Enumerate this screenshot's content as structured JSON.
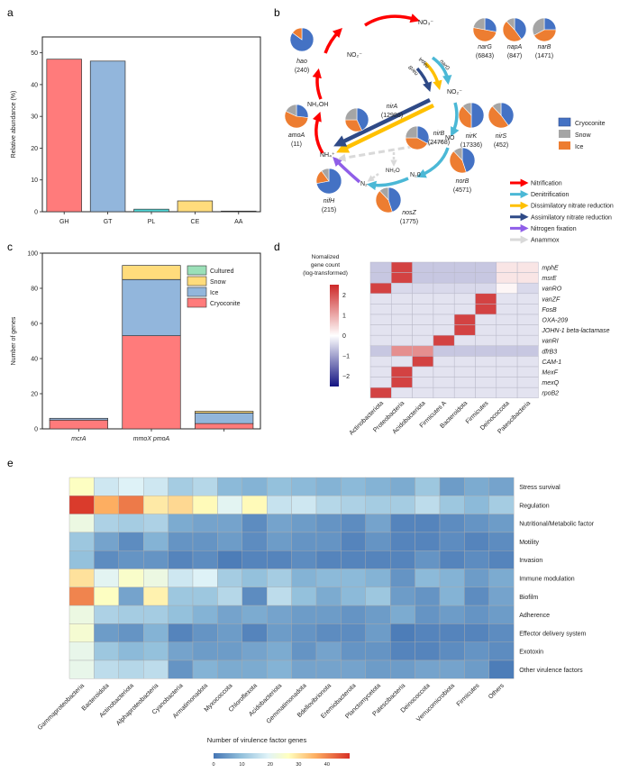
{
  "chart_data": [
    {
      "panel": "a",
      "type": "bar",
      "title": "",
      "xlabel": "",
      "ylabel": "Relative abundance (%)",
      "categories": [
        "GH",
        "GT",
        "PL",
        "CE",
        "AA"
      ],
      "values": [
        48.0,
        47.4,
        0.8,
        3.4,
        0.2
      ],
      "colors": [
        "#ff7b7b",
        "#92b6dc",
        "#4fd6d6",
        "#ffdc7c",
        "#333333"
      ],
      "ylim": [
        0,
        55
      ],
      "yticks": [
        0,
        10,
        20,
        30,
        40,
        50
      ],
      "grid": false
    },
    {
      "panel": "b",
      "type": "diagram",
      "compounds": [
        "NO2-",
        "NO3-",
        "NO2-",
        "NO",
        "N2O",
        "N2",
        "NH4+",
        "NH2OH",
        "NH2O"
      ],
      "compound_labels": {
        "no2_top": "NO₂⁻",
        "no3": "NO₃⁻",
        "no2_right": "NO₂⁻",
        "no": "NO",
        "n2o": "N₂0",
        "n2": "N₂",
        "nh4": "NH₄⁺",
        "nh2oh": "NH₂OH",
        "nh2o": "NH₂O"
      },
      "arrow_labels": [
        "narG",
        "napA",
        "narB"
      ],
      "genes": [
        {
          "name": "hao",
          "count": "(240)",
          "cryoconite": 0.85,
          "snow": 0.0,
          "ice": 0.15
        },
        {
          "name": "amoA",
          "count": "(11)",
          "cryoconite": 0.27,
          "snow": 0.18,
          "ice": 0.55
        },
        {
          "name": "nirA",
          "count": "(12988)",
          "cryoconite": 0.43,
          "snow": 0.25,
          "ice": 0.32
        },
        {
          "name": "nirB",
          "count": "(24768)",
          "cryoconite": 0.33,
          "snow": 0.25,
          "ice": 0.42
        },
        {
          "name": "narG",
          "count": "(6843)",
          "cryoconite": 0.28,
          "snow": 0.22,
          "ice": 0.5
        },
        {
          "name": "napA",
          "count": "(847)",
          "cryoconite": 0.4,
          "snow": 0.12,
          "ice": 0.48
        },
        {
          "name": "narB",
          "count": "(1471)",
          "cryoconite": 0.25,
          "snow": 0.33,
          "ice": 0.42
        },
        {
          "name": "nirK",
          "count": "(17336)",
          "cryoconite": 0.5,
          "snow": 0.12,
          "ice": 0.38
        },
        {
          "name": "nirS",
          "count": "(452)",
          "cryoconite": 0.4,
          "snow": 0.12,
          "ice": 0.48
        },
        {
          "name": "norB",
          "count": "(4571)",
          "cryoconite": 0.45,
          "snow": 0.12,
          "ice": 0.43
        },
        {
          "name": "nosZ",
          "count": "(1775)",
          "cryoconite": 0.45,
          "snow": 0.12,
          "ice": 0.43
        },
        {
          "name": "nifH",
          "count": "(215)",
          "cryoconite": 0.72,
          "snow": 0.1,
          "ice": 0.18
        }
      ],
      "pie_legend": [
        {
          "label": "Cryoconite",
          "color": "#4472c4"
        },
        {
          "label": "Snow",
          "color": "#a5a5a5"
        },
        {
          "label": "Ice",
          "color": "#ed7d31"
        }
      ],
      "pathway_legend": [
        {
          "label": "Nitrification",
          "color": "#ff0000"
        },
        {
          "label": "Denitrification",
          "color": "#4bb8d6"
        },
        {
          "label": "Dissimilatory nitrate reduction",
          "color": "#ffc000"
        },
        {
          "label": "Assimilatory nitrate reduction",
          "color": "#2f4a87"
        },
        {
          "label": "Nitrogen fixation",
          "color": "#8f5ee8"
        },
        {
          "label": "Anammox",
          "color": "#d9d9d9"
        }
      ]
    },
    {
      "panel": "c",
      "type": "bar",
      "stacked": true,
      "xlabel": "",
      "ylabel": "Number of genes",
      "categories": [
        "mcrA",
        "mmoX pmoA",
        ""
      ],
      "series": [
        {
          "name": "Cryoconite",
          "color": "#ff7b7b",
          "values": [
            5,
            53,
            3
          ]
        },
        {
          "name": "Ice",
          "color": "#92b6dc",
          "values": [
            1,
            32,
            6
          ]
        },
        {
          "name": "Snow",
          "color": "#ffdc7c",
          "values": [
            0,
            8,
            1
          ]
        },
        {
          "name": "Cultured",
          "color": "#9be0b8",
          "values": [
            0,
            0,
            0
          ]
        }
      ],
      "legend_order": [
        "Cultured",
        "Snow",
        "Ice",
        "Cryoconite"
      ],
      "legend_position": "top-right",
      "ylim": [
        0,
        100
      ],
      "yticks": [
        0,
        20,
        40,
        60,
        80,
        100
      ]
    },
    {
      "panel": "d",
      "type": "heatmap",
      "colorbar_title": [
        "Nomalized",
        "gene count",
        "(log-transformed)"
      ],
      "colorbar_ticks": [
        2,
        1,
        0,
        -1,
        -2
      ],
      "crange": [
        -2.5,
        2.5
      ],
      "columns": [
        "Actinobacteriota",
        "Proteobacteria",
        "Acidobacteriota",
        "Firmicutes A",
        "Bacteroidota",
        "Firmicutes",
        "Deinococcota",
        "Patescibacteria"
      ],
      "rows": [
        "mphE",
        "msrE",
        "vanRO",
        "vanZF",
        "FosB",
        "OXA-209",
        "JOHN-1 beta-lactamase",
        "vanRI",
        "dfrB3",
        "CAM-1",
        "MexF",
        "mexQ",
        "rpoB2"
      ],
      "values": [
        [
          -0.6,
          2.2,
          -0.6,
          -0.6,
          -0.6,
          -0.6,
          0.3,
          0.3
        ],
        [
          -0.6,
          2.2,
          -0.6,
          -0.6,
          -0.6,
          -0.6,
          0.3,
          0.3
        ],
        [
          2.2,
          -0.4,
          -0.4,
          -0.4,
          -0.4,
          -0.4,
          0.1,
          -0.4
        ],
        [
          -0.3,
          -0.3,
          -0.3,
          -0.3,
          -0.3,
          2.2,
          -0.3,
          -0.3
        ],
        [
          -0.3,
          -0.3,
          -0.3,
          -0.3,
          -0.3,
          2.2,
          -0.3,
          -0.3
        ],
        [
          -0.3,
          -0.3,
          -0.3,
          -0.3,
          2.2,
          -0.3,
          -0.3,
          -0.3
        ],
        [
          -0.3,
          -0.3,
          -0.3,
          -0.3,
          2.2,
          -0.3,
          -0.3,
          -0.3
        ],
        [
          -0.3,
          -0.3,
          -0.3,
          2.2,
          -0.3,
          -0.3,
          -0.3,
          -0.3
        ],
        [
          -0.6,
          1.3,
          1.3,
          -0.6,
          -0.6,
          -0.6,
          -0.6,
          -0.6
        ],
        [
          -0.3,
          -0.3,
          2.2,
          -0.3,
          -0.3,
          -0.3,
          -0.3,
          -0.3
        ],
        [
          -0.3,
          2.2,
          -0.3,
          -0.3,
          -0.3,
          -0.3,
          -0.3,
          -0.3
        ],
        [
          -0.3,
          2.2,
          -0.3,
          -0.3,
          -0.3,
          -0.3,
          -0.3,
          -0.3
        ],
        [
          2.2,
          -0.3,
          -0.3,
          -0.3,
          -0.3,
          -0.3,
          -0.3,
          -0.3
        ]
      ]
    },
    {
      "panel": "e",
      "type": "heatmap",
      "colorbar_title": "Number of virulence factor genes",
      "colorbar_ticks": [
        0,
        10,
        20,
        30,
        40
      ],
      "crange": [
        0,
        48
      ],
      "columns": [
        "Gammaproteobacteria",
        "Bacteroidota",
        "Actinobacteriota",
        "Alphaproteobacteria",
        "Cyanobacteria",
        "Armatimonadota",
        "Myxococcota",
        "Chloroflexota",
        "Acidobacteriota",
        "Gemmatimonadota",
        "Bdellovibrionota",
        "Eremiobacterota",
        "Planctomycetota",
        "Patescibacteria",
        "Deinococcota",
        "Verrucomicrobiota",
        "Firmicutes",
        "Others"
      ],
      "rows": [
        "Stress survival",
        "Regulation",
        "Nutritional/Metabolic factor",
        "Motility",
        "Invasion",
        "Immune modulation",
        "Biofilm",
        "Adherence",
        "Effector delivery system",
        "Exotoxin",
        "Other virulence factors"
      ],
      "values": [
        [
          26,
          17,
          19,
          17,
          12,
          14,
          9,
          8,
          10,
          9,
          8,
          9,
          8,
          7,
          11,
          5,
          7,
          6
        ],
        [
          47,
          36,
          41,
          29,
          31,
          27,
          20,
          27,
          16,
          17,
          14,
          13,
          12,
          12,
          15,
          11,
          9,
          12
        ],
        [
          22,
          13,
          12,
          13,
          7,
          6,
          6,
          3,
          6,
          5,
          4,
          3,
          6,
          2,
          2,
          3,
          4,
          5
        ],
        [
          11,
          6,
          3,
          8,
          4,
          4,
          5,
          3,
          5,
          4,
          4,
          2,
          4,
          2,
          2,
          3,
          2,
          3
        ],
        [
          10,
          3,
          4,
          4,
          2,
          3,
          1,
          2,
          2,
          3,
          2,
          2,
          2,
          2,
          4,
          2,
          3,
          2
        ],
        [
          30,
          20,
          25,
          22,
          17,
          19,
          12,
          10,
          12,
          8,
          9,
          9,
          8,
          4,
          9,
          8,
          5,
          7
        ],
        [
          40,
          26,
          6,
          28,
          11,
          11,
          14,
          3,
          15,
          10,
          7,
          9,
          11,
          5,
          4,
          8,
          3,
          6
        ],
        [
          22,
          13,
          12,
          12,
          10,
          8,
          6,
          7,
          6,
          5,
          5,
          4,
          5,
          7,
          4,
          5,
          4,
          5
        ],
        [
          24,
          5,
          4,
          8,
          2,
          4,
          5,
          2,
          5,
          4,
          3,
          3,
          5,
          1,
          2,
          2,
          2,
          3
        ],
        [
          21,
          11,
          9,
          10,
          6,
          5,
          5,
          6,
          7,
          4,
          6,
          4,
          4,
          2,
          2,
          3,
          4,
          3
        ],
        [
          21,
          15,
          14,
          15,
          4,
          8,
          7,
          7,
          8,
          6,
          6,
          6,
          5,
          5,
          6,
          6,
          5,
          1
        ]
      ]
    }
  ],
  "panel_letters": {
    "a": "a",
    "b": "b",
    "c": "c",
    "d": "d",
    "e": "e"
  }
}
